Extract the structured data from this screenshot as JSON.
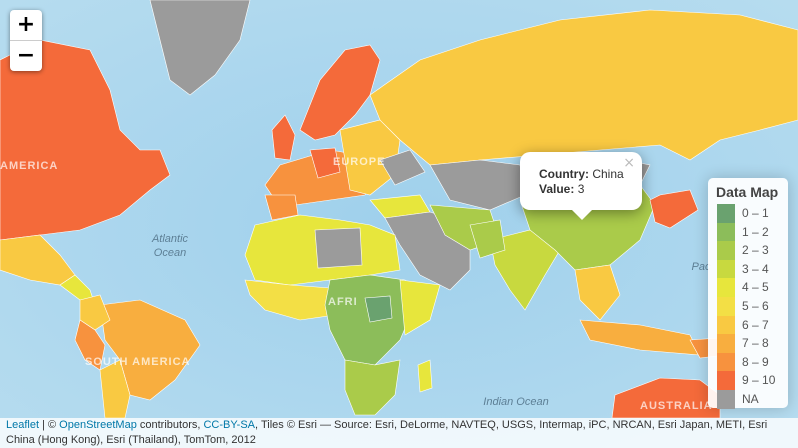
{
  "zoom": {
    "in_label": "+",
    "out_label": "−"
  },
  "popup": {
    "country_key": "Country:",
    "country_value": "China",
    "value_key": "Value:",
    "value_value": "3",
    "close_label": "×"
  },
  "legend": {
    "title": "Data Map",
    "items": [
      {
        "label": "0 – 1",
        "color": "#6aa26f"
      },
      {
        "label": "1 – 2",
        "color": "#8cbd5a"
      },
      {
        "label": "2 – 3",
        "color": "#aacb4a"
      },
      {
        "label": "3 – 4",
        "color": "#c8d93f"
      },
      {
        "label": "4 – 5",
        "color": "#e7e63c"
      },
      {
        "label": "5 – 6",
        "color": "#f3df45"
      },
      {
        "label": "6 – 7",
        "color": "#f9c942"
      },
      {
        "label": "7 – 8",
        "color": "#f8ae3f"
      },
      {
        "label": "8 – 9",
        "color": "#f7923e"
      },
      {
        "label": "9 – 10",
        "color": "#f46a3a"
      },
      {
        "label": "NA",
        "color": "#9b9b9b"
      }
    ]
  },
  "labels": {
    "atlantic": "Atlantic\nOcean",
    "indian": "Indian Ocean",
    "pacific": "Pac",
    "america": "AMERICA",
    "europe": "EUROPE",
    "south_america": "SOUTH AMERICA",
    "australia": "AUSTRALIA",
    "africa": "AFRI"
  },
  "attribution": {
    "leaflet": "Leaflet",
    "sep1": " | © ",
    "osm": "OpenStreetMap",
    "mid": " contributors, ",
    "license": "CC-BY-SA",
    "rest": ", Tiles © Esri — Source: Esri, DeLorme, NAVTEQ, USGS, Intermap, iPC, NRCAN, Esri Japan, METI, Esri China (Hong Kong), Esri (Thailand), TomTom, 2012"
  }
}
